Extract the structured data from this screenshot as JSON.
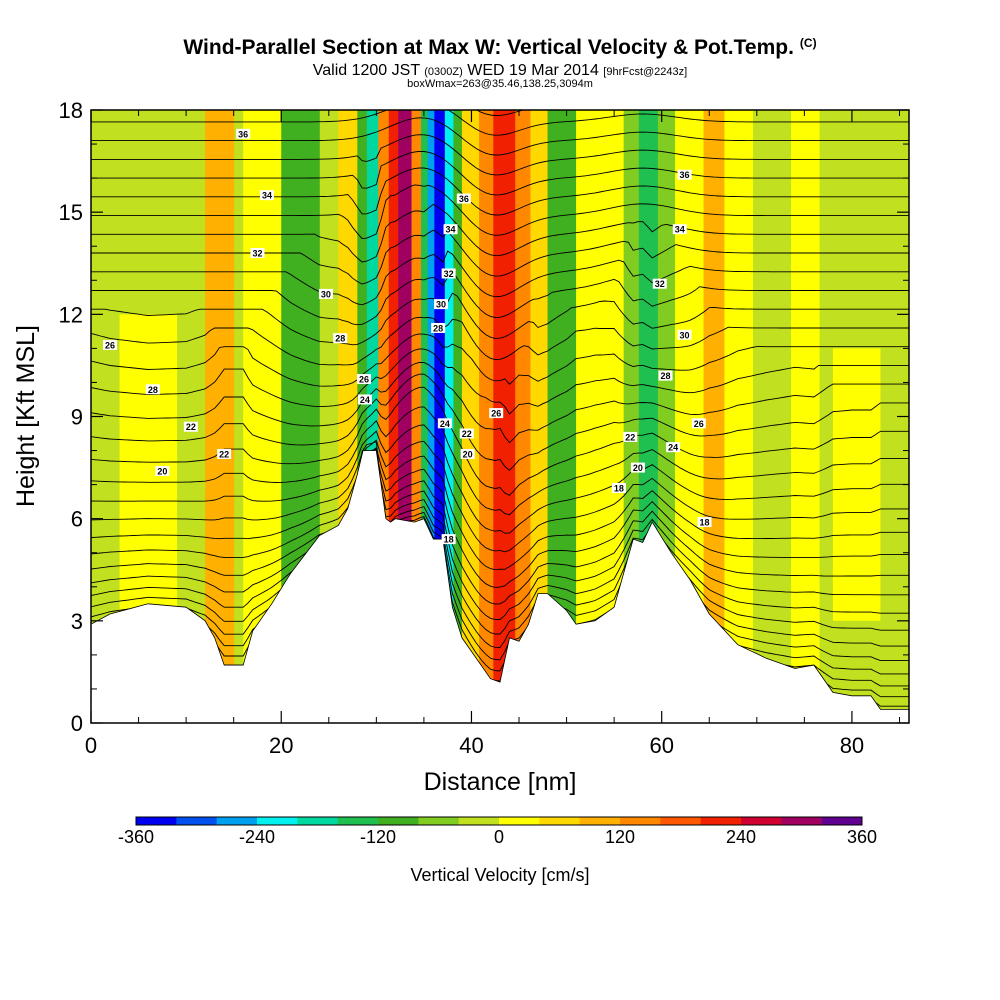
{
  "title": "Wind-Parallel Section at Max W: Vertical Velocity & Pot.Temp.",
  "title_tag": "(C)",
  "subtitle_main_a": "Valid 1200 JST ",
  "subtitle_small_a": "(0300Z)",
  "subtitle_main_b": " WED 19 Mar 2014 ",
  "subtitle_small_b": "[9hrFcst@2243z]",
  "subtitle2": "boxWmax=263@35.46,138.25,3094m",
  "chart_data": {
    "type": "heatmap",
    "xlabel": "Distance [nm]",
    "ylabel": "Height [Kft MSL]",
    "xlim": [
      0,
      86
    ],
    "ylim": [
      0,
      18
    ],
    "xticks": [
      0,
      20,
      40,
      60,
      80
    ],
    "yticks": [
      0,
      3,
      6,
      9,
      12,
      15,
      18
    ],
    "colorbar": {
      "title": "Vertical Velocity [cm/s]",
      "ticks": [
        -360,
        -240,
        -120,
        0,
        120,
        240,
        360
      ],
      "colors": [
        "#0000f0",
        "#0050f0",
        "#00a0f0",
        "#00f0f0",
        "#00d8a0",
        "#20c050",
        "#40b020",
        "#80cc20",
        "#c0e020",
        "#ffff00",
        "#ffd800",
        "#ffb000",
        "#ff8800",
        "#ff5800",
        "#f02000",
        "#d00030",
        "#a00060",
        "#600090"
      ]
    },
    "terrain": [
      [
        0,
        2.9
      ],
      [
        2,
        3.2
      ],
      [
        6,
        3.5
      ],
      [
        10,
        3.4
      ],
      [
        12,
        3
      ],
      [
        13,
        2.5
      ],
      [
        14,
        1.7
      ],
      [
        16,
        1.7
      ],
      [
        17,
        2.7
      ],
      [
        19,
        3.5
      ],
      [
        21,
        4.4
      ],
      [
        24,
        5.5
      ],
      [
        26,
        5.8
      ],
      [
        27,
        6.3
      ],
      [
        28,
        7.3
      ],
      [
        28.6,
        8
      ],
      [
        30,
        8
      ],
      [
        30.5,
        7
      ],
      [
        31,
        6
      ],
      [
        31.5,
        5.9
      ],
      [
        32,
        6
      ],
      [
        34,
        5.9
      ],
      [
        35,
        6
      ],
      [
        36,
        5.4
      ],
      [
        37,
        5.4
      ],
      [
        38,
        3.4
      ],
      [
        39,
        2.5
      ],
      [
        40,
        2.1
      ],
      [
        42,
        1.3
      ],
      [
        43,
        1.2
      ],
      [
        44,
        2.5
      ],
      [
        45,
        2.4
      ],
      [
        46,
        2.9
      ],
      [
        47,
        3.8
      ],
      [
        48,
        3.8
      ],
      [
        50,
        3.3
      ],
      [
        51,
        2.9
      ],
      [
        53,
        3
      ],
      [
        55,
        3.4
      ],
      [
        57,
        5.4
      ],
      [
        58,
        5.3
      ],
      [
        59,
        5.9
      ],
      [
        61,
        5
      ],
      [
        63,
        4.2
      ],
      [
        65,
        3.2
      ],
      [
        68,
        2.3
      ],
      [
        71,
        1.9
      ],
      [
        74,
        1.6
      ],
      [
        76,
        1.7
      ],
      [
        78,
        0.9
      ],
      [
        80,
        0.8
      ],
      [
        82,
        0.8
      ],
      [
        83,
        0.4
      ],
      [
        86,
        0.4
      ]
    ],
    "bands": [
      {
        "x": 0,
        "w": 86,
        "value": -30
      },
      {
        "x": 3,
        "w": 6,
        "value": 20,
        "ymin": 3,
        "ymax": 12
      },
      {
        "x": 12,
        "w": 3,
        "value": 80
      },
      {
        "x": 16,
        "w": 6,
        "value": 30
      },
      {
        "x": 20,
        "w": 4,
        "value": -90
      },
      {
        "x": 26,
        "w": 2,
        "value": 60
      },
      {
        "x": 28,
        "w": 1.5,
        "value": -100
      },
      {
        "x": 29,
        "w": 1.5,
        "value": -170
      },
      {
        "x": 30.2,
        "w": 1.2,
        "value": 120
      },
      {
        "x": 31.3,
        "w": 1.1,
        "value": 230
      },
      {
        "x": 32.3,
        "w": 1.5,
        "value": 280
      },
      {
        "x": 33.7,
        "w": 1.1,
        "value": 150
      },
      {
        "x": 34.7,
        "w": 0.8,
        "value": -160
      },
      {
        "x": 35.4,
        "w": 0.8,
        "value": -260
      },
      {
        "x": 36.1,
        "w": 1.2,
        "value": -340
      },
      {
        "x": 37.2,
        "w": 1,
        "value": -220
      },
      {
        "x": 38.1,
        "w": 1,
        "value": -90
      },
      {
        "x": 39,
        "w": 2,
        "value": 50
      },
      {
        "x": 40.8,
        "w": 1.6,
        "value": 140
      },
      {
        "x": 42.3,
        "w": 2.4,
        "value": 230
      },
      {
        "x": 44.6,
        "w": 1.6,
        "value": 140
      },
      {
        "x": 46.2,
        "w": 1.8,
        "value": 50
      },
      {
        "x": 48,
        "w": 3,
        "value": -110
      },
      {
        "x": 51,
        "w": 5,
        "value": 20
      },
      {
        "x": 56,
        "w": 1.6,
        "value": -80
      },
      {
        "x": 57.6,
        "w": 2,
        "value": -130
      },
      {
        "x": 59.6,
        "w": 1.8,
        "value": -70
      },
      {
        "x": 61.4,
        "w": 3,
        "value": 20
      },
      {
        "x": 64.4,
        "w": 2.2,
        "value": 100
      },
      {
        "x": 66.6,
        "w": 3,
        "value": 30
      },
      {
        "x": 69.6,
        "w": 4,
        "value": -30
      },
      {
        "x": 73.6,
        "w": 3,
        "value": 20
      },
      {
        "x": 76.6,
        "w": 4,
        "value": -30
      },
      {
        "x": 78,
        "w": 5,
        "value": 30,
        "ymin": 3,
        "ymax": 11
      },
      {
        "x": 83,
        "w": 3,
        "value": -20
      }
    ],
    "contour_labels": [
      {
        "x": 16,
        "y": 17.3,
        "text": "36"
      },
      {
        "x": 18.5,
        "y": 15.5,
        "text": "34"
      },
      {
        "x": 17.5,
        "y": 13.8,
        "text": "32"
      },
      {
        "x": 2,
        "y": 11.1,
        "text": "26"
      },
      {
        "x": 6.5,
        "y": 9.8,
        "text": "28"
      },
      {
        "x": 10.5,
        "y": 8.7,
        "text": "22"
      },
      {
        "x": 14,
        "y": 7.9,
        "text": "22"
      },
      {
        "x": 7.5,
        "y": 7.4,
        "text": "20"
      },
      {
        "x": 24.7,
        "y": 12.6,
        "text": "30"
      },
      {
        "x": 26.2,
        "y": 11.3,
        "text": "28"
      },
      {
        "x": 28.7,
        "y": 10.1,
        "text": "26"
      },
      {
        "x": 28.8,
        "y": 9.5,
        "text": "24"
      },
      {
        "x": 39.2,
        "y": 15.4,
        "text": "36"
      },
      {
        "x": 37.8,
        "y": 14.5,
        "text": "34"
      },
      {
        "x": 37.6,
        "y": 13.2,
        "text": "32"
      },
      {
        "x": 36.8,
        "y": 12.3,
        "text": "30"
      },
      {
        "x": 36.5,
        "y": 11.6,
        "text": "28"
      },
      {
        "x": 37.2,
        "y": 8.8,
        "text": "24"
      },
      {
        "x": 39.5,
        "y": 8.5,
        "text": "22"
      },
      {
        "x": 39.6,
        "y": 7.9,
        "text": "20"
      },
      {
        "x": 42.6,
        "y": 9.1,
        "text": "26"
      },
      {
        "x": 37.6,
        "y": 5.4,
        "text": "18"
      },
      {
        "x": 62.4,
        "y": 16.1,
        "text": "36"
      },
      {
        "x": 61.9,
        "y": 14.5,
        "text": "34"
      },
      {
        "x": 59.8,
        "y": 12.9,
        "text": "32"
      },
      {
        "x": 62.4,
        "y": 11.4,
        "text": "30"
      },
      {
        "x": 60.4,
        "y": 10.2,
        "text": "28"
      },
      {
        "x": 63.9,
        "y": 8.8,
        "text": "26"
      },
      {
        "x": 61.2,
        "y": 8.1,
        "text": "24"
      },
      {
        "x": 56.7,
        "y": 8.4,
        "text": "22"
      },
      {
        "x": 57.5,
        "y": 7.5,
        "text": "20"
      },
      {
        "x": 55.5,
        "y": 6.9,
        "text": "18"
      },
      {
        "x": 64.5,
        "y": 5.9,
        "text": "18"
      }
    ]
  }
}
